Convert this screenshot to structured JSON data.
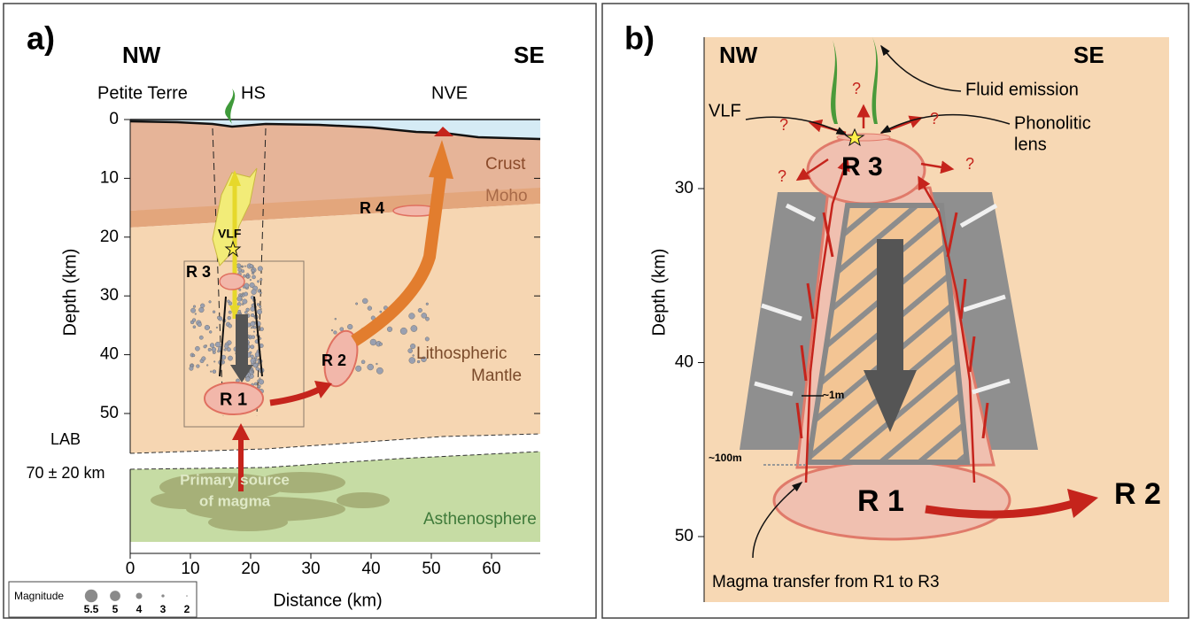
{
  "panel_a": {
    "label": "a)",
    "nw": "NW",
    "se": "SE",
    "places": [
      "Petite Terre",
      "HS",
      "NVE"
    ],
    "layers": {
      "crust": "Crust",
      "moho": "Moho",
      "mantle": [
        "Lithospheric",
        "Mantle"
      ],
      "lab": [
        "LAB",
        "70 ± 20 km"
      ],
      "source": [
        "Primary source",
        "of magma"
      ],
      "asthenosphere": "Asthenosphere"
    },
    "reservoirs": [
      "R 1",
      "R 2",
      "R 3",
      "R 4"
    ],
    "vlf": "VLF",
    "y_axis": {
      "label": "Depth (km)",
      "ticks": [
        0,
        10,
        20,
        30,
        40,
        50
      ]
    },
    "x_axis": {
      "label": "Distance (km)",
      "ticks": [
        0,
        10,
        20,
        30,
        40,
        50,
        60
      ]
    },
    "legend": {
      "title": "Magnitude",
      "sizes": [
        5.5,
        5,
        4,
        3,
        2
      ]
    }
  },
  "panel_b": {
    "label": "b)",
    "nw": "NW",
    "se": "SE",
    "fluid": "Fluid emission",
    "vlf": "VLF",
    "lens": [
      "Phonolitic",
      "lens"
    ],
    "questions": [
      "?",
      "?",
      "?",
      "?",
      "?"
    ],
    "reservoirs": [
      "R 1",
      "R 2",
      "R 3"
    ],
    "width": "~1m",
    "height": "~100m",
    "transfer": "Magma transfer from R1 to R3",
    "y_axis": {
      "label": "Depth (km)",
      "ticks": [
        30,
        40,
        50
      ]
    }
  }
}
